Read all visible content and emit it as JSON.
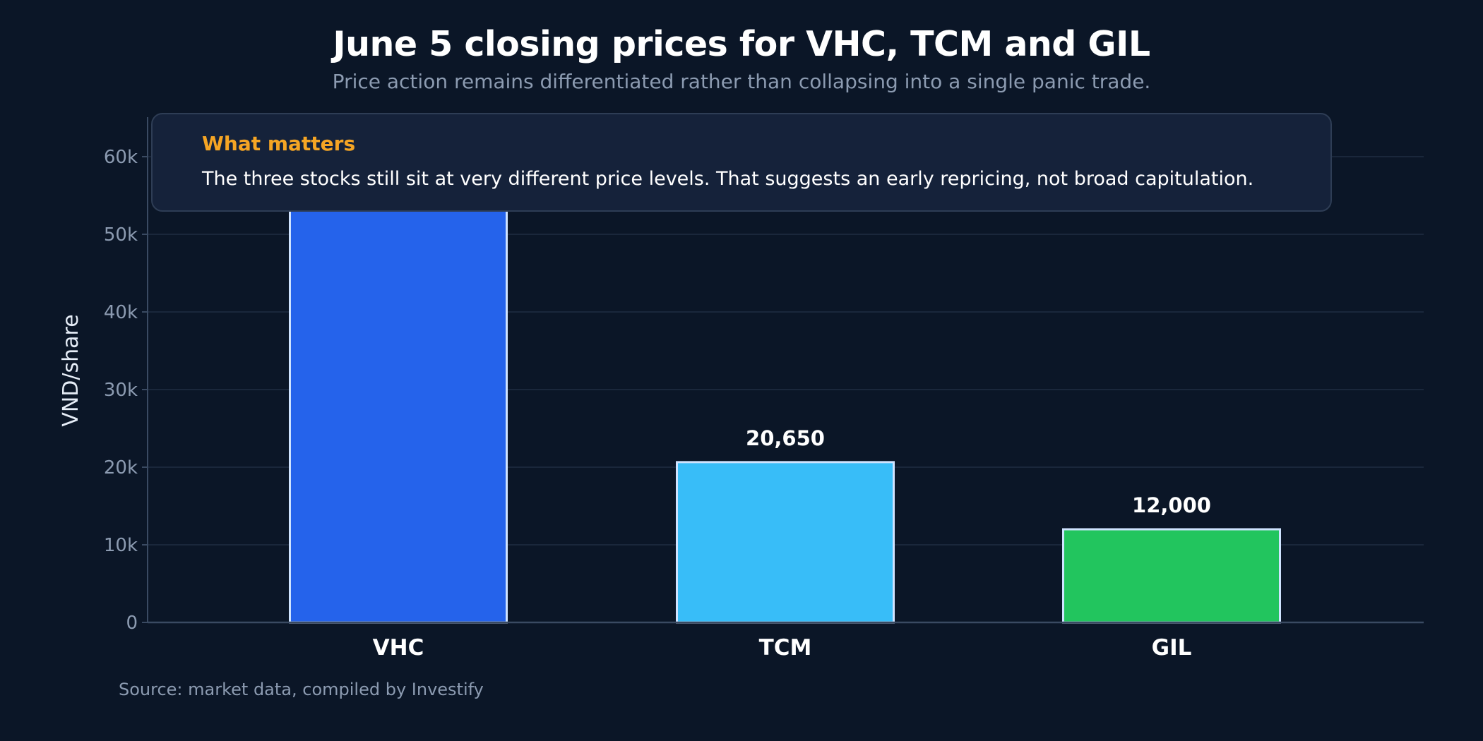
{
  "header": {
    "title": "June 5 closing prices for VHC, TCM and GIL",
    "subtitle": "Price action remains differentiated rather than collapsing into a single panic trade."
  },
  "callout": {
    "title": "What matters",
    "text": "The three stocks still sit at very different price levels. That suggests an early repricing, not broad capitulation."
  },
  "footer": {
    "source": "Source: market data, compiled by Investify"
  },
  "colors": {
    "background": "#0b1627",
    "grid": "#1f2d42",
    "axis": "#3a4a62",
    "tick_text": "#8c9bb1",
    "bar_border": "#cfe3ff",
    "callout_accent": "#f5a524"
  },
  "chart_data": {
    "type": "bar",
    "categories": [
      "VHC",
      "TCM",
      "GIL"
    ],
    "values": [
      62000,
      20650,
      12000
    ],
    "data_labels": [
      "",
      "20,650",
      "12,000"
    ],
    "colors": [
      "#2563eb",
      "#38bdf8",
      "#22c55e"
    ],
    "ylabel": "VND/share",
    "xlabel": "",
    "ylim": [
      0,
      65000
    ],
    "y_ticks": [
      0,
      10000,
      20000,
      30000,
      40000,
      50000,
      60000
    ],
    "y_tick_labels": [
      "0",
      "10k",
      "20k",
      "30k",
      "40k",
      "50k",
      "60k"
    ],
    "grid": true,
    "legend": "none"
  }
}
